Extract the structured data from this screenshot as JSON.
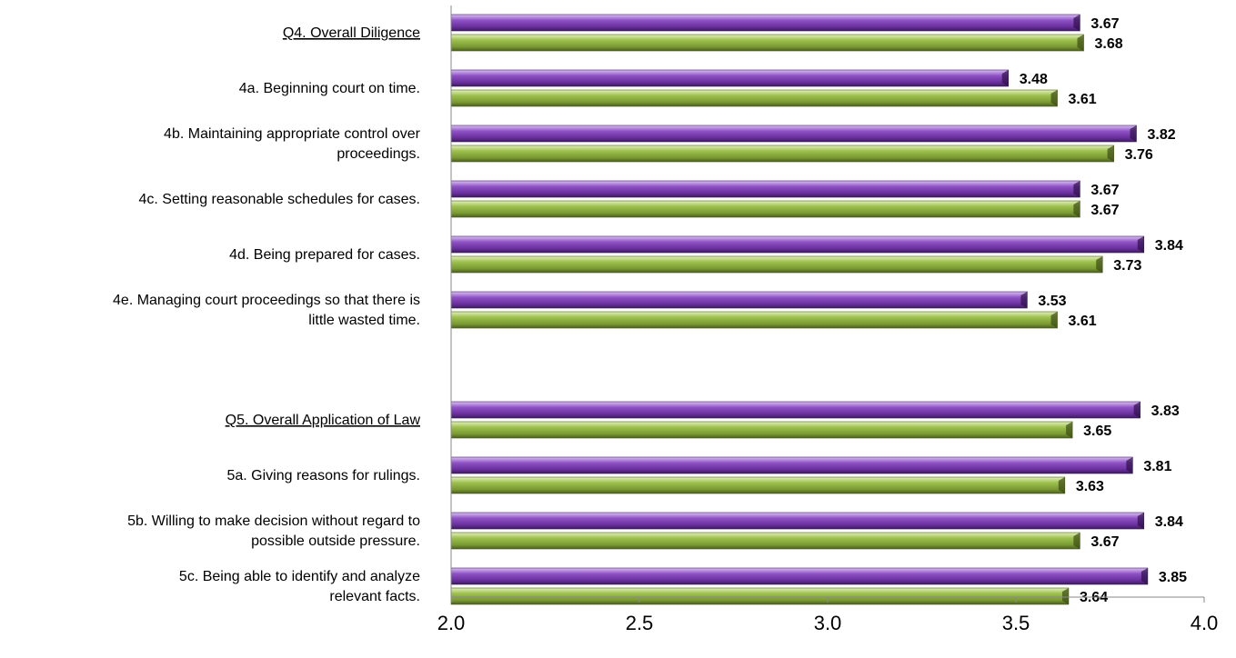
{
  "chart_data": {
    "type": "bar",
    "orientation": "horizontal",
    "xlim": [
      2.0,
      4.0
    ],
    "x_ticks": [
      "2.0",
      "2.5",
      "3.0",
      "3.5",
      "4.0"
    ],
    "colors": {
      "series_a": "#7b3fb0",
      "series_b": "#86a83a"
    },
    "categories": [
      {
        "lines": [
          "Q4. Overall Diligence"
        ],
        "header": true,
        "values": [
          3.67,
          3.68
        ],
        "labels": [
          "3.67",
          "3.68"
        ]
      },
      {
        "lines": [
          "4a. Beginning court on time."
        ],
        "header": false,
        "values": [
          3.48,
          3.61
        ],
        "labels": [
          "3.48",
          "3.61"
        ]
      },
      {
        "lines": [
          "4b. Maintaining appropriate control over",
          "proceedings."
        ],
        "header": false,
        "values": [
          3.82,
          3.76
        ],
        "labels": [
          "3.82",
          "3.76"
        ]
      },
      {
        "lines": [
          "4c. Setting reasonable schedules for cases."
        ],
        "header": false,
        "values": [
          3.67,
          3.67
        ],
        "labels": [
          "3.67",
          "3.67"
        ]
      },
      {
        "lines": [
          "4d. Being prepared for cases."
        ],
        "header": false,
        "values": [
          3.84,
          3.73
        ],
        "labels": [
          "3.84",
          "3.73"
        ]
      },
      {
        "lines": [
          "4e. Managing court proceedings so that there is",
          "little wasted time."
        ],
        "header": false,
        "values": [
          3.53,
          3.61
        ],
        "labels": [
          "3.53",
          "3.61"
        ]
      },
      {
        "lines": [
          "Q5. Overall Application of Law"
        ],
        "header": true,
        "values": [
          3.83,
          3.65
        ],
        "labels": [
          "3.83",
          "3.65"
        ]
      },
      {
        "lines": [
          "5a. Giving reasons for rulings."
        ],
        "header": false,
        "values": [
          3.81,
          3.63
        ],
        "labels": [
          "3.81",
          "3.63"
        ]
      },
      {
        "lines": [
          "5b. Willing to make decision without regard to",
          "possible outside pressure."
        ],
        "header": false,
        "values": [
          3.84,
          3.67
        ],
        "labels": [
          "3.84",
          "3.67"
        ]
      },
      {
        "lines": [
          "5c. Being able to identify and analyze",
          "relevant facts."
        ],
        "header": false,
        "values": [
          3.85,
          3.64
        ],
        "labels": [
          "3.85",
          "3.64"
        ]
      }
    ]
  }
}
